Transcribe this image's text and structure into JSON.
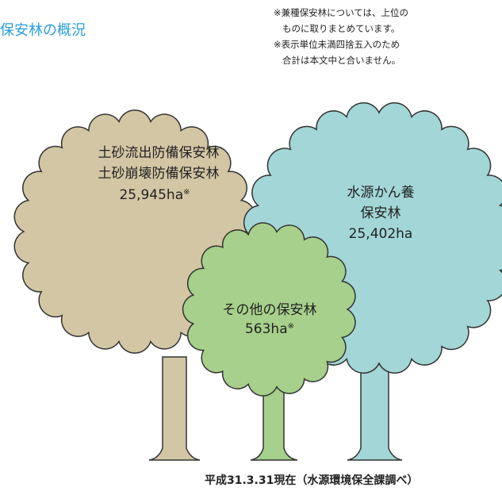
{
  "title": "保安林の概況",
  "notes": [
    "※兼種保安林については、上位の",
    "ものに取りまとめています。",
    "※表示単位未満四捨五入のため",
    "合計は本文中と合いません。"
  ],
  "trees": [
    {
      "label_lines": [
        "土砂流出防備保安林",
        "土砂崩壊防備保安林"
      ],
      "value": "25,945ha",
      "mark": "※"
    },
    {
      "label_lines": [
        "水源かん養",
        "保安林"
      ],
      "value": "25,402ha"
    },
    {
      "label_lines": [
        "その他の保安林"
      ],
      "value": "563ha",
      "mark": "※"
    }
  ],
  "footer": "平成31.3.31現在（水源環境保全課調べ）"
}
